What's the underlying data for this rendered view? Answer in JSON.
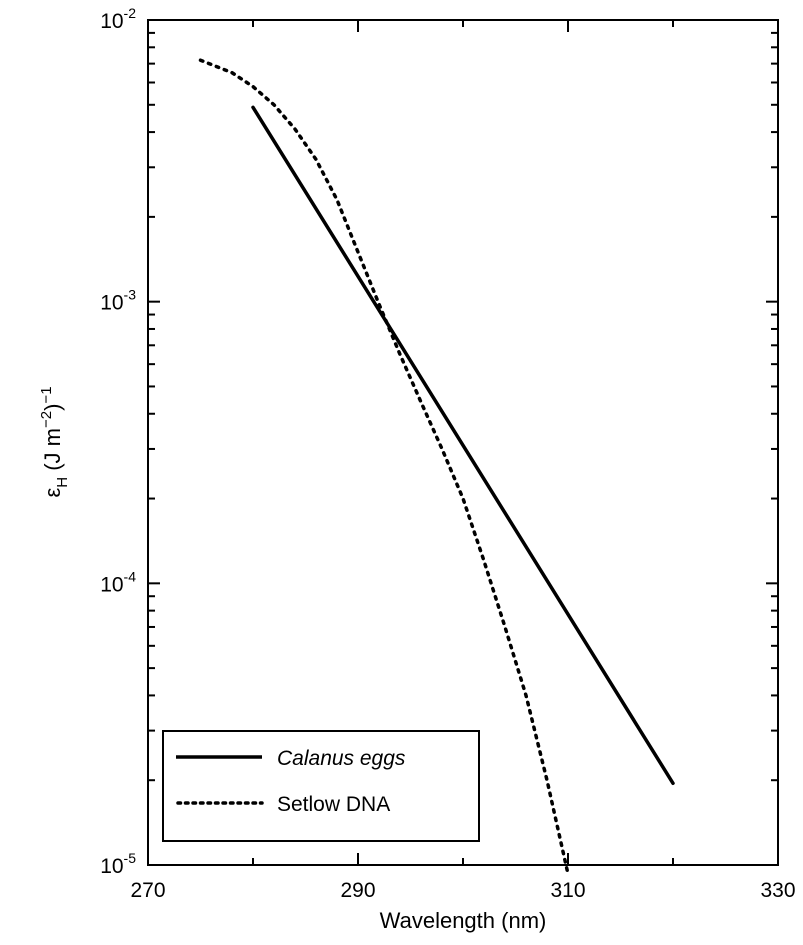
{
  "chart_data": {
    "type": "line",
    "xlabel": "Wavelength (nm)",
    "ylabel": {
      "base": "ε",
      "sub": "H",
      "rest": " (J m",
      "sup": "−2",
      "end": ")",
      "sup2": "−1"
    },
    "xlim": [
      270,
      330
    ],
    "ylim": [
      1e-05,
      0.01
    ],
    "yscale": "log",
    "x_ticks": [
      "270",
      "290",
      "310",
      "330"
    ],
    "x_tick_values": [
      270,
      290,
      310,
      330
    ],
    "y_ticks": [
      {
        "base": "10",
        "exp": "-5",
        "value": 1e-05
      },
      {
        "base": "10",
        "exp": "-4",
        "value": 0.0001
      },
      {
        "base": "10",
        "exp": "-3",
        "value": 0.001
      },
      {
        "base": "10",
        "exp": "-2",
        "value": 0.01
      }
    ],
    "grid": false,
    "legend_position": "bottom-left",
    "series": [
      {
        "name": "Calanus eggs",
        "style": "solid",
        "color": "#000000",
        "x": [
          280,
          320
        ],
        "y": [
          0.0049,
          1.95e-05
        ]
      },
      {
        "name": "Setlow DNA",
        "style": "dotted",
        "color": "#000000",
        "x": [
          275,
          278,
          280,
          282,
          284,
          286,
          288,
          290,
          292,
          294,
          296,
          298,
          300,
          302,
          304,
          306,
          308,
          310
        ],
        "y": [
          0.0072,
          0.0065,
          0.0058,
          0.005,
          0.0041,
          0.0032,
          0.0023,
          0.0015,
          0.00098,
          0.00065,
          0.00044,
          0.0003,
          0.0002,
          0.00012,
          7e-05,
          4e-05,
          2e-05,
          9.3e-06
        ]
      }
    ]
  }
}
